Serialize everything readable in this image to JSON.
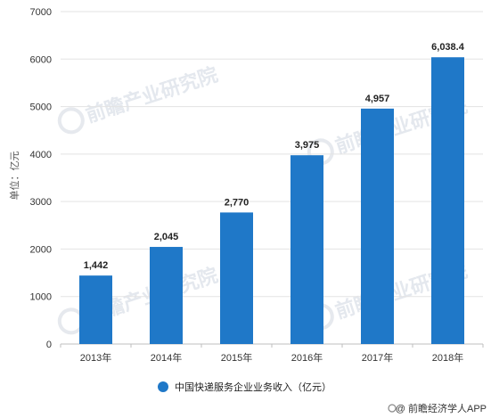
{
  "chart_data": {
    "type": "bar",
    "categories": [
      "2013年",
      "2014年",
      "2015年",
      "2016年",
      "2017年",
      "2018年"
    ],
    "values": [
      1442,
      2045,
      2770,
      3975,
      4957,
      6038.4
    ],
    "value_labels": [
      "1,442",
      "2,045",
      "2,770",
      "3,975",
      "4,957",
      "6,038.4"
    ],
    "y_ticks": [
      0,
      1000,
      2000,
      3000,
      4000,
      5000,
      6000,
      7000
    ],
    "ylim": [
      0,
      7000
    ],
    "ylabel": "单位：亿元",
    "legend": [
      {
        "name": "中国快递服务企业业务收入（亿元）",
        "color": "#1f78c8"
      }
    ],
    "legend_position": "bottom",
    "grid": true,
    "bar_color": "#1f78c8"
  },
  "watermark": {
    "text": "前瞻产业研究院"
  },
  "footer": {
    "text": "@ 前瞻经济学人APP"
  }
}
